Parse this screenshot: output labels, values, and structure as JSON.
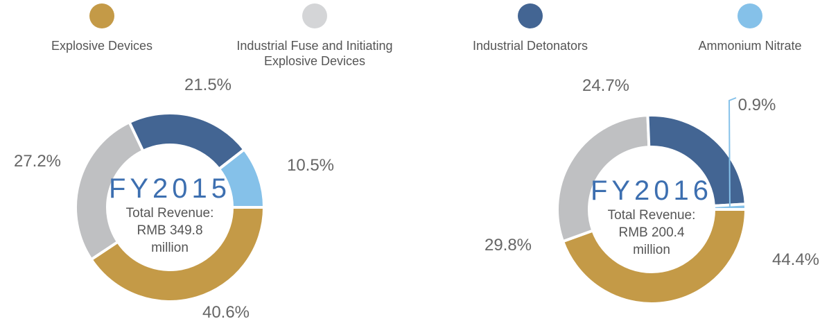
{
  "colors": {
    "Explosive Devices": "#c49a47",
    "Industrial Fuse and Initiating Explosive Devices": "#bfc0c2",
    "Industrial Detonators": "#436593",
    "Ammonium Nitrate": "#85c1e9"
  },
  "legend": [
    {
      "label_lines": [
        "Explosive Devices"
      ],
      "color": "#c49a47"
    },
    {
      "label_lines": [
        "Industrial Fuse and Initiating",
        "Explosive Devices"
      ],
      "color": "#d4d5d7"
    },
    {
      "label_lines": [
        "Industrial Detonators"
      ],
      "color": "#436593"
    },
    {
      "label_lines": [
        "Ammonium Nitrate"
      ],
      "color": "#85c1e9"
    }
  ],
  "chart_data": [
    {
      "type": "pie",
      "title": "FY2015",
      "center_text": [
        "Total Revenue:",
        "RMB 349.8",
        "million"
      ],
      "slices": [
        {
          "name": "Explosive Devices",
          "value": 40.6,
          "label": "40.6%"
        },
        {
          "name": "Industrial Fuse and Initiating Explosive Devices",
          "value": 27.2,
          "label": "27.2%"
        },
        {
          "name": "Industrial Detonators",
          "value": 21.5,
          "label": "21.5%"
        },
        {
          "name": "Ammonium Nitrate",
          "value": 10.5,
          "label": "10.5%"
        }
      ]
    },
    {
      "type": "pie",
      "title": "FY2016",
      "center_text": [
        "Total Revenue:",
        "RMB 200.4",
        "million"
      ],
      "slices": [
        {
          "name": "Explosive Devices",
          "value": 44.4,
          "label": "44.4%"
        },
        {
          "name": "Industrial Fuse and Initiating Explosive Devices",
          "value": 29.8,
          "label": "29.8%"
        },
        {
          "name": "Industrial Detonators",
          "value": 24.7,
          "label": "24.7%"
        },
        {
          "name": "Ammonium Nitrate",
          "value": 0.9,
          "label": "0.9%"
        }
      ]
    }
  ]
}
